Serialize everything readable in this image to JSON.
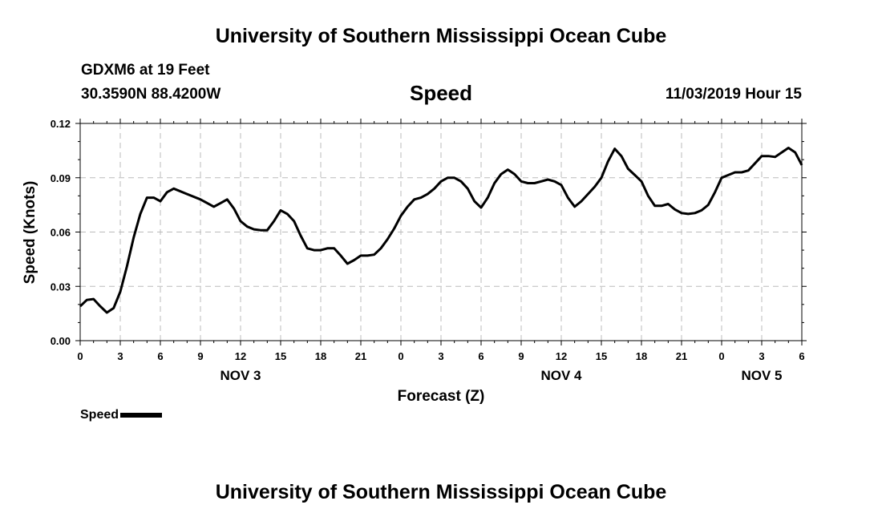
{
  "header": {
    "title": "University of Southern Mississippi Ocean Cube",
    "station": "GDXM6 at 19 Feet",
    "coords": "30.3590N 88.4200W",
    "datetime": "11/03/2019 Hour 15"
  },
  "footer": {
    "title": "University of Southern Mississippi Ocean Cube"
  },
  "legend": {
    "label": "Speed",
    "color": "#000000"
  },
  "chart_data": {
    "type": "line",
    "title": "Speed",
    "xlabel": "Forecast (Z)",
    "ylabel": "Speed (Knots)",
    "ylim": [
      0,
      0.12
    ],
    "xlim": [
      0,
      54
    ],
    "yticks": [
      "0.00",
      "0.03",
      "0.06",
      "0.09",
      "0.12"
    ],
    "xtick_labels": [
      "0",
      "3",
      "6",
      "9",
      "12",
      "15",
      "18",
      "21",
      "0",
      "3",
      "6",
      "9",
      "12",
      "15",
      "18",
      "21",
      "0",
      "3",
      "6"
    ],
    "day_labels": [
      {
        "label": "NOV 3",
        "at": 12
      },
      {
        "label": "NOV 4",
        "at": 36
      },
      {
        "label": "NOV 5",
        "at": 51
      }
    ],
    "grid": true,
    "series": [
      {
        "name": "Speed",
        "x": [
          0,
          0.5,
          1,
          1.5,
          2,
          2.5,
          3,
          3.5,
          4,
          4.5,
          5,
          5.5,
          6,
          6.5,
          7,
          8,
          9,
          10,
          10.5,
          11,
          11.5,
          12,
          12.5,
          13,
          13.5,
          14,
          14.5,
          15,
          15.5,
          16,
          16.5,
          17,
          17.5,
          18,
          18.5,
          19,
          19.5,
          20,
          20.5,
          21,
          21.5,
          22,
          22.5,
          23,
          23.5,
          24,
          24.5,
          25,
          25.5,
          26,
          26.5,
          27,
          27.5,
          28,
          28.5,
          29,
          29.5,
          30,
          30.5,
          31,
          31.5,
          32,
          32.5,
          33,
          33.5,
          34,
          34.5,
          35,
          35.5,
          36,
          36.5,
          37,
          37.5,
          38,
          38.5,
          39,
          39.5,
          40,
          40.5,
          41,
          41.5,
          42,
          42.5,
          43,
          43.5,
          44,
          44.5,
          45,
          45.5,
          46,
          46.5,
          47,
          47.5,
          48,
          48.5,
          49,
          49.5,
          50,
          50.5,
          51,
          51.5,
          52,
          52.5,
          53,
          53.5,
          54
        ],
        "values": [
          0.019,
          0.0225,
          0.023,
          0.019,
          0.0155,
          0.018,
          0.027,
          0.041,
          0.057,
          0.07,
          0.079,
          0.079,
          0.077,
          0.082,
          0.084,
          0.081,
          0.078,
          0.074,
          0.076,
          0.078,
          0.073,
          0.066,
          0.063,
          0.0615,
          0.061,
          0.061,
          0.066,
          0.072,
          0.07,
          0.066,
          0.058,
          0.051,
          0.05,
          0.05,
          0.051,
          0.051,
          0.047,
          0.0425,
          0.0445,
          0.047,
          0.047,
          0.0475,
          0.051,
          0.056,
          0.062,
          0.069,
          0.074,
          0.078,
          0.079,
          0.081,
          0.084,
          0.088,
          0.09,
          0.09,
          0.088,
          0.084,
          0.077,
          0.0735,
          0.079,
          0.087,
          0.092,
          0.0945,
          0.092,
          0.088,
          0.087,
          0.087,
          0.088,
          0.089,
          0.088,
          0.086,
          0.079,
          0.074,
          0.077,
          0.081,
          0.085,
          0.09,
          0.099,
          0.106,
          0.102,
          0.095,
          0.0915,
          0.088,
          0.08,
          0.0745,
          0.0745,
          0.0755,
          0.0725,
          0.0705,
          0.07,
          0.0705,
          0.072,
          0.075,
          0.082,
          0.09,
          0.0915,
          0.093,
          0.093,
          0.094,
          0.098,
          0.102,
          0.102,
          0.1015,
          0.104,
          0.1065,
          0.104,
          0.097
        ]
      }
    ]
  }
}
